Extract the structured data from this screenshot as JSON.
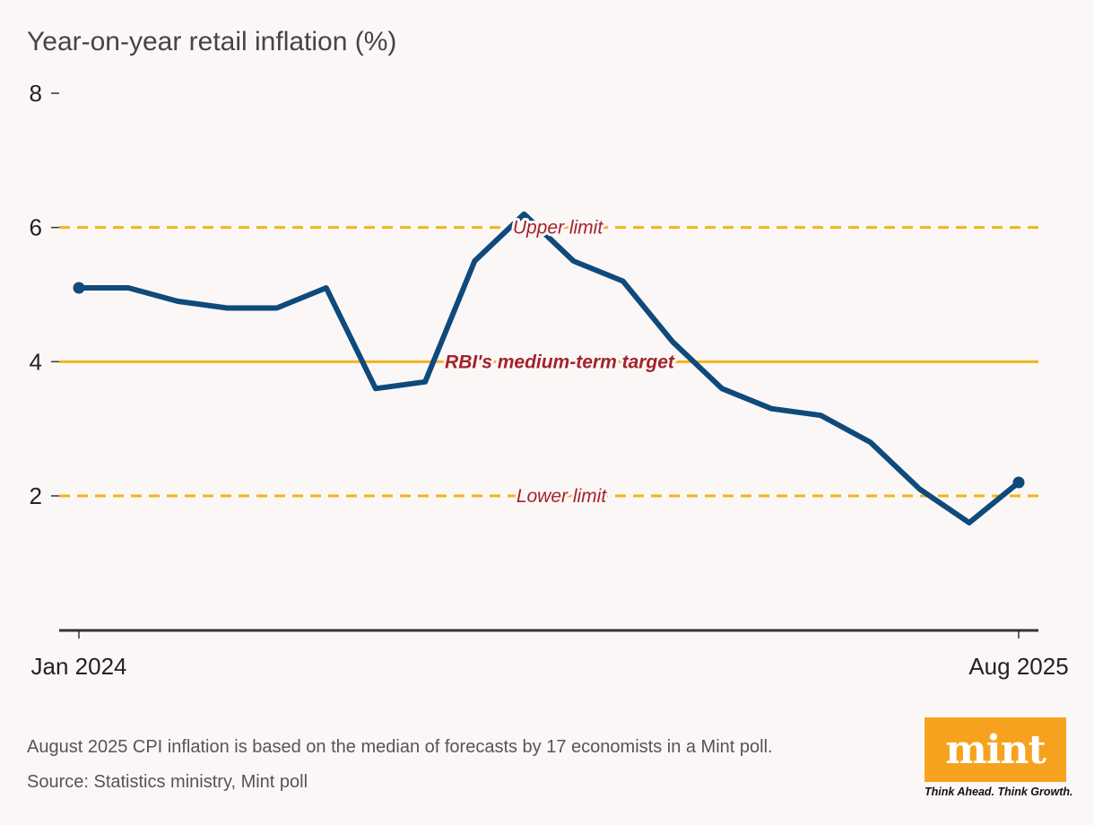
{
  "title": "Year-on-year retail inflation (%)",
  "chart_data": {
    "type": "line",
    "x": [
      "Jan 2024",
      "Feb 2024",
      "Mar 2024",
      "Apr 2024",
      "May 2024",
      "Jun 2024",
      "Jul 2024",
      "Aug 2024",
      "Sep 2024",
      "Oct 2024",
      "Nov 2024",
      "Dec 2024",
      "Jan 2025",
      "Feb 2025",
      "Mar 2025",
      "Apr 2025",
      "May 2025",
      "Jun 2025",
      "Jul 2025",
      "Aug 2025"
    ],
    "series": [
      {
        "values": [
          5.1,
          5.1,
          4.9,
          4.8,
          4.8,
          5.1,
          3.6,
          3.7,
          5.5,
          6.2,
          5.5,
          5.2,
          4.3,
          3.6,
          3.3,
          3.2,
          2.8,
          2.1,
          1.6,
          2.2
        ]
      }
    ],
    "x_tick_labels": [
      "Jan 2024",
      "Aug 2025"
    ],
    "y_ticks": [
      2,
      4,
      6,
      8
    ],
    "ylim": [
      0,
      8
    ],
    "reference_lines": [
      {
        "value": 6,
        "label": "Upper limit",
        "style": "dashed"
      },
      {
        "value": 4,
        "label": "RBI's medium-term target",
        "style": "solid"
      },
      {
        "value": 2,
        "label": "Lower limit",
        "style": "dashed"
      }
    ],
    "colors": {
      "line": "#0e4a7b",
      "reference": "#f5b31a",
      "label": "#a3232b",
      "background": "#fcf7f7"
    },
    "grid": false
  },
  "footnote": "August 2025 CPI inflation is based on the median of forecasts by 17 economists in a Mint poll.",
  "source": "Source: Statistics ministry, Mint poll",
  "logo": {
    "text": "mint",
    "tagline": "Think Ahead. Think Growth.",
    "color": "#f7a21e"
  }
}
